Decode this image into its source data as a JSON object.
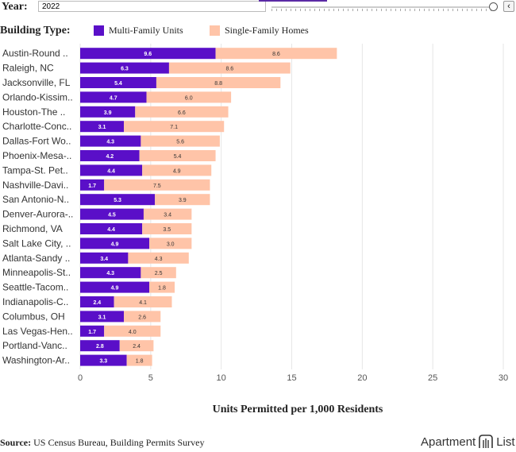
{
  "controls": {
    "year_label": "Year:",
    "year_value": "2022",
    "prev_icon": "‹"
  },
  "legend": {
    "title": "Building Type:",
    "items": [
      {
        "label": "Multi-Family Units",
        "color": "#5a0fc8"
      },
      {
        "label": "Single-Family Homes",
        "color": "#ffc4a8"
      }
    ]
  },
  "chart_data": {
    "type": "bar",
    "orientation": "horizontal",
    "stacked": true,
    "categories": [
      "Austin-Round ..",
      "Raleigh, NC",
      "Jacksonville, FL",
      "Orlando-Kissim..",
      "Houston-The ..",
      "Charlotte-Conc..",
      "Dallas-Fort Wo..",
      "Phoenix-Mesa-..",
      "Tampa-St. Pet..",
      "Nashville-Davi..",
      "San Antonio-N..",
      "Denver-Aurora-..",
      "Richmond, VA",
      "Salt Lake City, ..",
      "Atlanta-Sandy ..",
      "Minneapolis-St..",
      "Seattle-Tacom..",
      "Indianapolis-C..",
      "Columbus, OH",
      "Las Vegas-Hen..",
      "Portland-Vanc..",
      "Washington-Ar.."
    ],
    "series": [
      {
        "name": "Multi-Family Units",
        "color": "#5a0fc8",
        "values": [
          9.6,
          6.3,
          5.4,
          4.7,
          3.9,
          3.1,
          4.3,
          4.2,
          4.4,
          1.7,
          5.3,
          4.5,
          4.4,
          4.9,
          3.4,
          4.3,
          4.9,
          2.4,
          3.1,
          1.7,
          2.8,
          3.3
        ]
      },
      {
        "name": "Single-Family Homes",
        "color": "#ffc4a8",
        "values": [
          8.6,
          8.6,
          8.8,
          6.0,
          6.6,
          7.1,
          5.6,
          5.4,
          4.9,
          7.5,
          3.9,
          3.4,
          3.5,
          3.0,
          4.3,
          2.5,
          1.8,
          4.1,
          2.6,
          4.0,
          2.4,
          1.8
        ]
      }
    ],
    "xlabel": "Units Permitted per 1,000 Residents",
    "xlim": [
      0,
      30
    ],
    "xticks": [
      0,
      5,
      10,
      15,
      20,
      25,
      30
    ],
    "grid": true
  },
  "footer": {
    "source_label": "Source:",
    "source_text": "US Census Bureau, Building Permits Survey",
    "brand": "Apartment",
    "brand2": "List"
  }
}
